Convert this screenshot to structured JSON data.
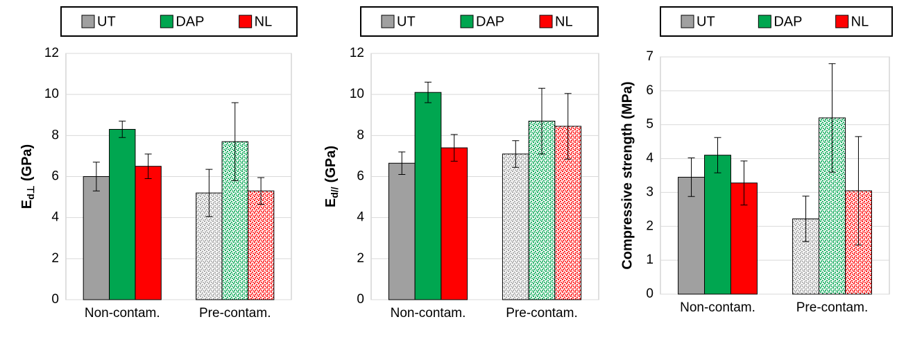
{
  "chart_data": [
    {
      "type": "bar",
      "y_label": {
        "main": "E",
        "sub": "d⊥",
        "unit": "(GPa)"
      },
      "categories": [
        "Non-contam.",
        "Pre-contam."
      ],
      "category_fill": [
        "solid",
        "dots"
      ],
      "series": [
        {
          "name": "UT",
          "color": "#a0a0a0",
          "values": [
            6.0,
            5.2
          ],
          "errors": [
            0.7,
            1.15
          ]
        },
        {
          "name": "DAP",
          "color": "#00a650",
          "values": [
            8.3,
            7.7
          ],
          "errors": [
            0.4,
            1.9
          ]
        },
        {
          "name": "NL",
          "color": "#ff0000",
          "values": [
            6.5,
            5.3
          ],
          "errors": [
            0.6,
            0.65
          ]
        }
      ],
      "ylim": [
        0,
        12
      ],
      "yticks": [
        0,
        2,
        4,
        6,
        8,
        10,
        12
      ],
      "grid": true
    },
    {
      "type": "bar",
      "y_label": {
        "main": "E",
        "sub": "d//",
        "unit": "(GPa)"
      },
      "categories": [
        "Non-contam.",
        "Pre-contam."
      ],
      "category_fill": [
        "solid",
        "dots"
      ],
      "series": [
        {
          "name": "UT",
          "color": "#a0a0a0",
          "values": [
            6.65,
            7.1
          ],
          "errors": [
            0.55,
            0.65
          ]
        },
        {
          "name": "DAP",
          "color": "#00a650",
          "values": [
            10.1,
            8.7
          ],
          "errors": [
            0.5,
            1.6
          ]
        },
        {
          "name": "NL",
          "color": "#ff0000",
          "values": [
            7.4,
            8.45
          ],
          "errors": [
            0.65,
            1.6
          ]
        }
      ],
      "ylim": [
        0,
        12
      ],
      "yticks": [
        0,
        2,
        4,
        6,
        8,
        10,
        12
      ],
      "grid": true
    },
    {
      "type": "bar",
      "y_label": "Compressive strength (MPa)",
      "categories": [
        "Non-contam.",
        "Pre-contam."
      ],
      "category_fill": [
        "solid",
        "dots"
      ],
      "series": [
        {
          "name": "UT",
          "color": "#a0a0a0",
          "values": [
            3.45,
            2.22
          ],
          "errors": [
            0.57,
            0.67
          ]
        },
        {
          "name": "DAP",
          "color": "#00a650",
          "values": [
            4.1,
            5.2
          ],
          "errors": [
            0.52,
            1.6
          ]
        },
        {
          "name": "NL",
          "color": "#ff0000",
          "values": [
            3.28,
            3.05
          ],
          "errors": [
            0.65,
            1.6
          ]
        }
      ],
      "ylim": [
        0,
        7
      ],
      "yticks": [
        0,
        1,
        2,
        3,
        4,
        5,
        6,
        7
      ],
      "grid": true
    }
  ]
}
